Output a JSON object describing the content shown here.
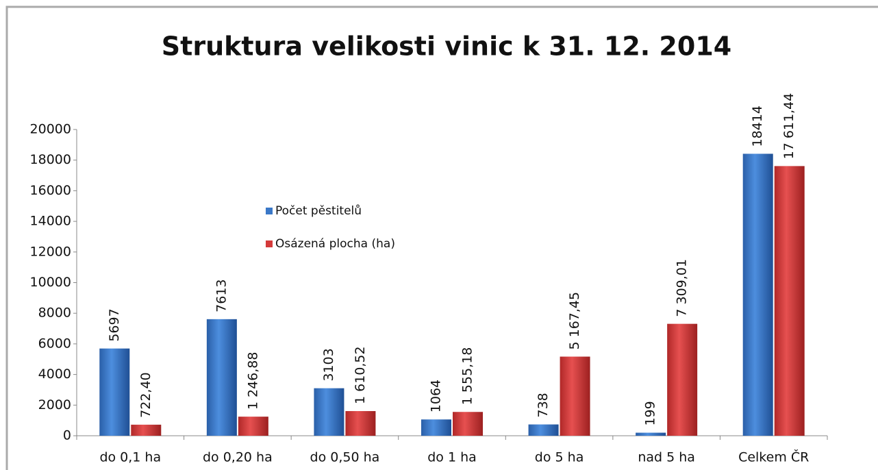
{
  "chart_data": {
    "type": "bar",
    "title": "Struktura velikosti vinic k 31. 12. 2014",
    "categories": [
      "do 0,1 ha",
      "do 0,20 ha",
      "do 0,50 ha",
      "do 1 ha",
      "do 5 ha",
      "nad 5 ha",
      "Celkem ČR"
    ],
    "series": [
      {
        "name": "Počet pěstitelů",
        "color": "#3a78c8",
        "values": [
          5697,
          7613,
          3103,
          1064,
          738,
          199,
          18414
        ]
      },
      {
        "name": "Osázená plocha (ha)",
        "color": "#d43a3a",
        "values": [
          722.4,
          1246.88,
          1610.52,
          1555.18,
          5167.45,
          7309.01,
          17611.44
        ],
        "value_labels": [
          "722,40",
          "1 246,88",
          "1 610,52",
          "1 555,18",
          "5 167,45",
          "7 309,01",
          "17 611,44"
        ]
      }
    ],
    "ylim": [
      0,
      20000
    ],
    "yticks": [
      0,
      2000,
      4000,
      6000,
      8000,
      10000,
      12000,
      14000,
      16000,
      18000,
      20000
    ],
    "grid": false
  }
}
